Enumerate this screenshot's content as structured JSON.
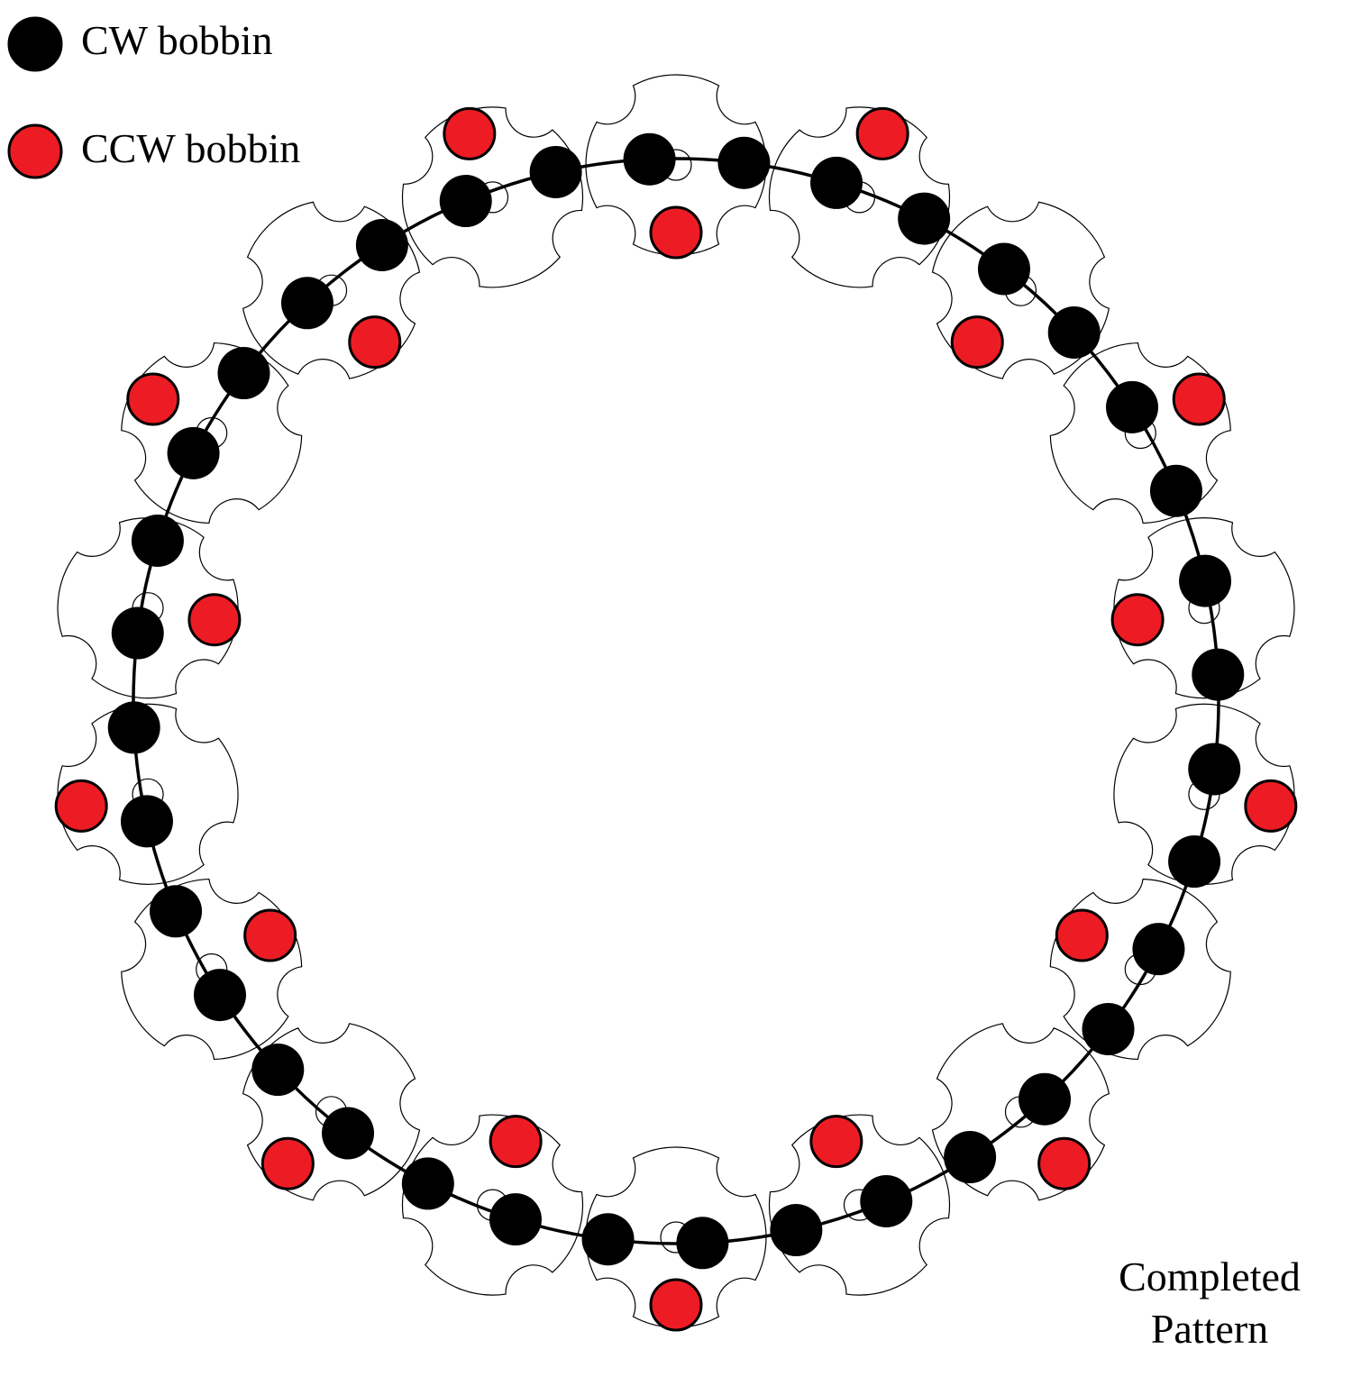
{
  "legend": {
    "cw": {
      "label": "CW bobbin",
      "color": "#000000"
    },
    "ccw": {
      "label": "CCW bobbin",
      "color": "#ED1C24"
    }
  },
  "caption": {
    "line1": "Completed",
    "line2": "Pattern"
  },
  "pattern": {
    "horn_gear_count": 18,
    "cw_bobbin_count": 36,
    "ccw_bobbin_count": 18,
    "gear_lobes": 4
  },
  "colors": {
    "track": "#000000",
    "gear_outline": "#000000",
    "ccw_fill": "#ED1C24",
    "cw_fill": "#000000"
  }
}
